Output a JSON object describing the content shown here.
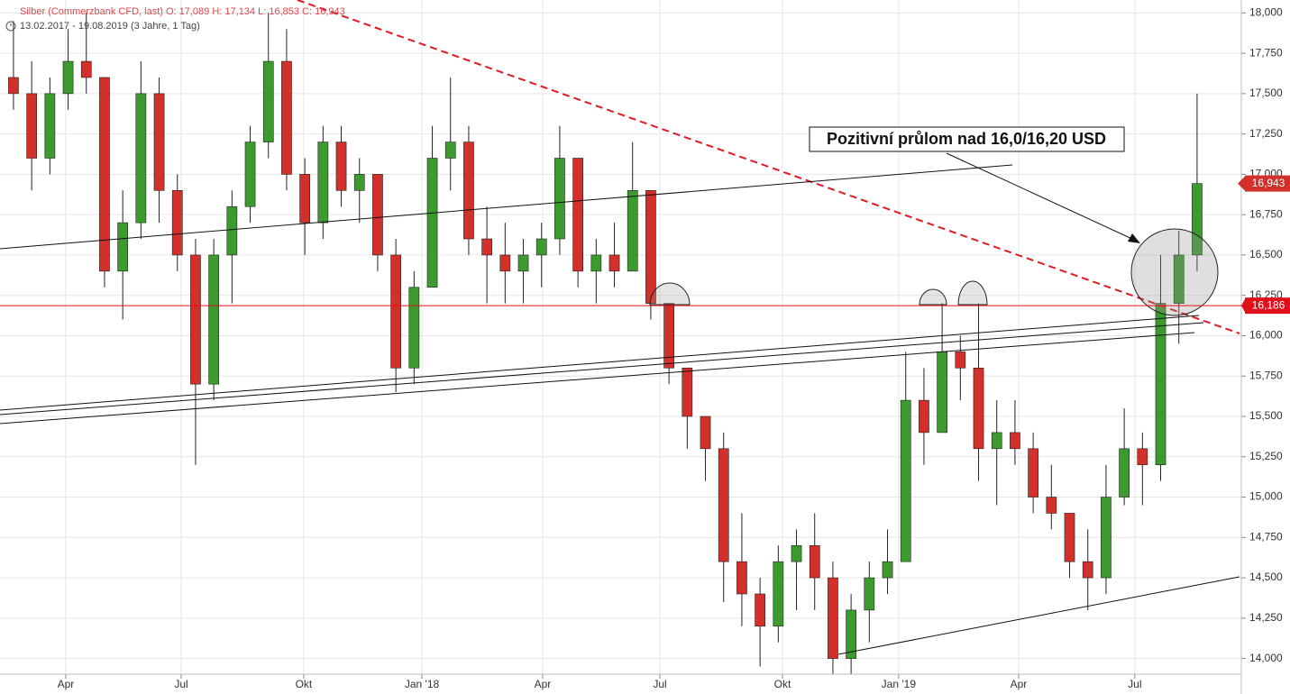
{
  "chart_data": {
    "type": "candlestick",
    "title": "Silber (Commerzbank CFD, last)  O: 17,089  H: 17,134  L: 16,853  C: 16,943",
    "subtitle": "13.02.2017 - 19.08.2019   (3 Jahre, 1 Tag)",
    "annotation": "Pozitivní průlom nad 16,0/16,20 USD",
    "up_color": "#3c9a2f",
    "down_color": "#d2302a",
    "level": {
      "value": 16.186,
      "label": "16,186"
    },
    "last_price": {
      "value": 16.943,
      "label": "16,943"
    },
    "level_color": "#e0101a",
    "open": [
      17.6,
      17.5,
      17.1,
      17.5,
      17.7,
      17.6,
      16.4,
      16.7,
      17.5,
      16.9,
      16.5,
      15.7,
      16.5,
      16.8,
      17.2,
      17.7,
      17.0,
      16.7,
      17.2,
      16.9,
      17.0,
      16.5,
      15.8,
      16.3,
      17.1,
      17.2,
      16.6,
      16.5,
      16.4,
      16.5,
      16.6,
      17.1,
      16.4,
      16.5,
      16.4,
      16.9,
      16.2,
      15.8,
      15.5,
      15.3,
      14.6,
      14.4,
      14.2,
      14.6,
      14.7,
      14.5,
      14.0,
      14.3,
      14.5,
      14.6,
      15.6,
      15.4,
      15.9,
      15.8,
      15.3,
      15.4,
      15.3,
      15.0,
      14.9,
      14.6,
      14.5,
      15.0,
      15.3,
      15.2,
      16.2,
      16.5
    ],
    "high": [
      17.95,
      17.7,
      17.6,
      17.9,
      18.0,
      17.6,
      16.9,
      17.7,
      17.6,
      17.0,
      16.6,
      16.6,
      16.9,
      17.3,
      18.0,
      17.9,
      17.1,
      17.3,
      17.3,
      17.1,
      17.0,
      16.6,
      16.4,
      17.3,
      17.6,
      17.3,
      16.8,
      16.7,
      16.6,
      16.7,
      17.3,
      17.1,
      16.6,
      16.7,
      17.2,
      16.9,
      16.2,
      15.8,
      15.5,
      15.4,
      14.9,
      14.5,
      14.7,
      14.8,
      14.9,
      14.6,
      14.4,
      14.6,
      14.8,
      15.9,
      15.8,
      16.2,
      16.0,
      16.2,
      15.6,
      15.6,
      15.4,
      15.2,
      14.9,
      14.8,
      15.2,
      15.55,
      15.4,
      16.5,
      16.65,
      17.5
    ],
    "low": [
      17.4,
      16.9,
      17.0,
      17.4,
      17.5,
      16.3,
      16.1,
      16.6,
      16.7,
      16.4,
      15.2,
      15.6,
      16.2,
      16.7,
      17.1,
      16.9,
      16.5,
      16.6,
      16.8,
      16.7,
      16.4,
      15.65,
      15.7,
      16.3,
      16.9,
      16.5,
      16.2,
      16.2,
      16.2,
      16.3,
      16.5,
      16.3,
      16.2,
      16.3,
      16.4,
      16.1,
      15.7,
      15.3,
      15.1,
      14.35,
      14.2,
      13.95,
      14.1,
      14.3,
      14.3,
      13.9,
      13.9,
      14.1,
      14.4,
      14.6,
      15.2,
      15.4,
      15.6,
      15.1,
      14.95,
      15.2,
      14.9,
      14.8,
      14.5,
      14.3,
      14.4,
      14.95,
      14.95,
      15.1,
      15.95,
      16.4
    ],
    "close": [
      17.5,
      17.1,
      17.5,
      17.7,
      17.6,
      16.4,
      16.7,
      17.5,
      16.9,
      16.5,
      15.7,
      16.5,
      16.8,
      17.2,
      17.7,
      17.0,
      16.7,
      17.2,
      16.9,
      17.0,
      16.5,
      15.8,
      16.3,
      17.1,
      17.2,
      16.6,
      16.5,
      16.4,
      16.5,
      16.6,
      17.1,
      16.4,
      16.5,
      16.4,
      16.9,
      16.2,
      15.8,
      15.5,
      15.3,
      14.6,
      14.4,
      14.2,
      14.6,
      14.7,
      14.5,
      14.0,
      14.3,
      14.5,
      14.6,
      15.6,
      15.4,
      15.9,
      15.8,
      15.3,
      15.4,
      15.3,
      15.0,
      14.9,
      14.6,
      14.5,
      15.0,
      15.3,
      15.2,
      16.2,
      16.5,
      16.943
    ],
    "xlim": [
      -0.74,
      67.43
    ],
    "xticks": [
      {
        "value": 2.87,
        "label": "Apr"
      },
      {
        "value": 9.21,
        "label": "Jul"
      },
      {
        "value": 15.94,
        "label": "Okt"
      },
      {
        "value": 22.43,
        "label": "Jan '18"
      },
      {
        "value": 29.06,
        "label": "Apr"
      },
      {
        "value": 35.5,
        "label": "Jul"
      },
      {
        "value": 42.23,
        "label": "Okt"
      },
      {
        "value": 48.61,
        "label": "Jan '19"
      },
      {
        "value": 55.2,
        "label": "Apr"
      },
      {
        "value": 61.58,
        "label": "Jul"
      }
    ],
    "ylim": [
      13.78,
      18.08
    ],
    "yticks": [
      {
        "value": 14,
        "label": "14,000"
      },
      {
        "value": 14.25,
        "label": "14,250"
      },
      {
        "value": 14.5,
        "label": "14,500"
      },
      {
        "value": 14.75,
        "label": "14,750"
      },
      {
        "value": 15,
        "label": "15,000"
      },
      {
        "value": 15.25,
        "label": "15,250"
      },
      {
        "value": 15.5,
        "label": "15,500"
      },
      {
        "value": 15.75,
        "label": "15,750"
      },
      {
        "value": 16,
        "label": "16,000"
      },
      {
        "value": 16.25,
        "label": "16,250"
      },
      {
        "value": 16.5,
        "label": "16,500"
      },
      {
        "value": 16.75,
        "label": "16,750"
      },
      {
        "value": 17,
        "label": "17,000"
      },
      {
        "value": 17.25,
        "label": "17,250"
      },
      {
        "value": 17.5,
        "label": "17,500"
      },
      {
        "value": 17.75,
        "label": "17,750"
      },
      {
        "value": 18,
        "label": "18,000"
      }
    ],
    "grid": true
  }
}
